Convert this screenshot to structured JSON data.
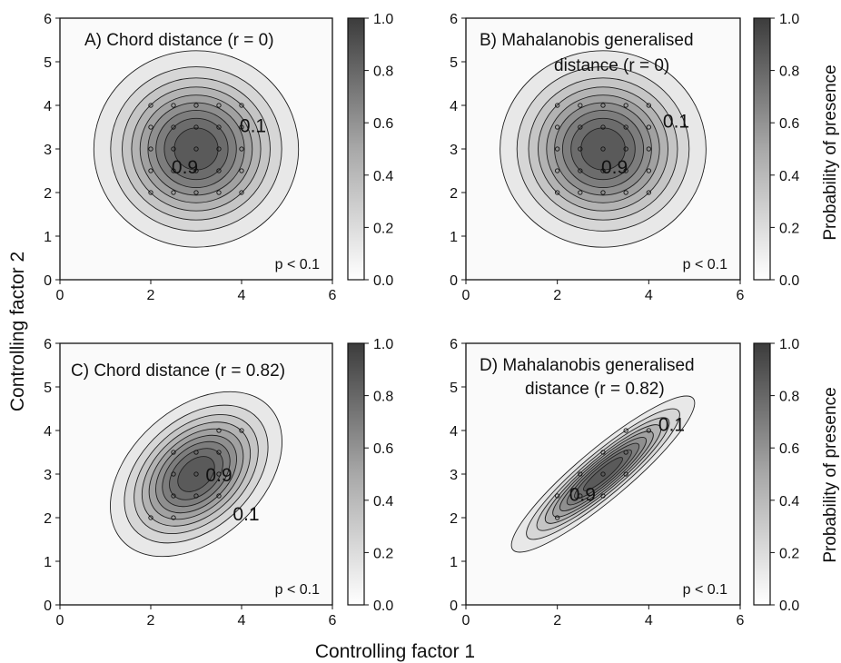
{
  "figure": {
    "xlabel": "Controlling factor 1",
    "ylabel": "Controlling factor 2",
    "colorbar_label": "Probability of presence"
  },
  "chart_data": [
    {
      "type": "contour",
      "panel": "A",
      "title_lines": [
        "A)  Chord distance (r = 0)"
      ],
      "xlim": [
        0,
        6
      ],
      "ylim": [
        0,
        6
      ],
      "xticks": [
        0,
        2,
        4,
        6
      ],
      "yticks": [
        0,
        1,
        2,
        3,
        4,
        5,
        6
      ],
      "center": [
        3,
        3
      ],
      "correlation": 0,
      "contour_levels": [
        0.1,
        0.2,
        0.3,
        0.4,
        0.5,
        0.6,
        0.7,
        0.8,
        0.9
      ],
      "contour_labels": [
        {
          "text": "0.1",
          "x": 4.25,
          "y": 3.5
        },
        {
          "text": "0.9",
          "x": 2.75,
          "y": 2.55
        }
      ],
      "annotation": "p < 0.1",
      "colorbar": {
        "min": 0.0,
        "max": 1.0,
        "ticks": [
          "0.0",
          "0.2",
          "0.4",
          "0.6",
          "0.8",
          "1.0"
        ]
      },
      "samples": [
        [
          2,
          4
        ],
        [
          2.5,
          4
        ],
        [
          3,
          4
        ],
        [
          3.5,
          4
        ],
        [
          4,
          4
        ],
        [
          2,
          3.5
        ],
        [
          2.5,
          3.5
        ],
        [
          3,
          3.5
        ],
        [
          3.5,
          3.5
        ],
        [
          4,
          3.5
        ],
        [
          2,
          3
        ],
        [
          2.5,
          3
        ],
        [
          3,
          3
        ],
        [
          3.5,
          3
        ],
        [
          4,
          3
        ],
        [
          2,
          2.5
        ],
        [
          2.5,
          2.5
        ],
        [
          3,
          2.5
        ],
        [
          3.5,
          2.5
        ],
        [
          4,
          2.5
        ],
        [
          2,
          2
        ],
        [
          2.5,
          2
        ],
        [
          3,
          2
        ],
        [
          3.5,
          2
        ],
        [
          4,
          2
        ]
      ]
    },
    {
      "type": "contour",
      "panel": "B",
      "title_lines": [
        "B)  Mahalanobis generalised",
        "distance (r = 0)"
      ],
      "xlim": [
        0,
        6
      ],
      "ylim": [
        0,
        6
      ],
      "xticks": [
        0,
        2,
        4,
        6
      ],
      "yticks": [
        0,
        1,
        2,
        3,
        4,
        5,
        6
      ],
      "center": [
        3,
        3
      ],
      "correlation": 0,
      "contour_levels": [
        0.1,
        0.2,
        0.3,
        0.4,
        0.5,
        0.6,
        0.7,
        0.8,
        0.9
      ],
      "contour_labels": [
        {
          "text": "0.1",
          "x": 4.6,
          "y": 3.6
        },
        {
          "text": "0.9",
          "x": 3.25,
          "y": 2.55
        }
      ],
      "annotation": "p < 0.1",
      "colorbar": {
        "min": 0.0,
        "max": 1.0,
        "ticks": [
          "0.0",
          "0.2",
          "0.4",
          "0.6",
          "0.8",
          "1.0"
        ]
      },
      "samples": [
        [
          2,
          4
        ],
        [
          2.5,
          4
        ],
        [
          3,
          4
        ],
        [
          3.5,
          4
        ],
        [
          4,
          4
        ],
        [
          2,
          3.5
        ],
        [
          2.5,
          3.5
        ],
        [
          3,
          3.5
        ],
        [
          3.5,
          3.5
        ],
        [
          4,
          3.5
        ],
        [
          2,
          3
        ],
        [
          2.5,
          3
        ],
        [
          3,
          3
        ],
        [
          3.5,
          3
        ],
        [
          4,
          3
        ],
        [
          2,
          2.5
        ],
        [
          2.5,
          2.5
        ],
        [
          3,
          2.5
        ],
        [
          3.5,
          2.5
        ],
        [
          4,
          2.5
        ],
        [
          2,
          2
        ],
        [
          2.5,
          2
        ],
        [
          3,
          2
        ],
        [
          3.5,
          2
        ],
        [
          4,
          2
        ]
      ]
    },
    {
      "type": "contour",
      "panel": "C",
      "title_lines": [
        "C)  Chord distance (r = 0.82)"
      ],
      "xlim": [
        0,
        6
      ],
      "ylim": [
        0,
        6
      ],
      "xticks": [
        0,
        2,
        4,
        6
      ],
      "yticks": [
        0,
        1,
        2,
        3,
        4,
        5,
        6
      ],
      "center": [
        3,
        3
      ],
      "correlation": 0.82,
      "contour_levels": [
        0.1,
        0.2,
        0.3,
        0.4,
        0.5,
        0.6,
        0.7,
        0.8,
        0.9
      ],
      "contour_labels": [
        {
          "text": "0.9",
          "x": 3.5,
          "y": 2.95
        },
        {
          "text": "0.1",
          "x": 4.1,
          "y": 2.05
        }
      ],
      "annotation": "p < 0.1",
      "colorbar": {
        "min": 0.0,
        "max": 1.0,
        "ticks": [
          "0.0",
          "0.2",
          "0.4",
          "0.6",
          "0.8",
          "1.0"
        ]
      },
      "samples": [
        [
          3.5,
          4
        ],
        [
          4,
          4
        ],
        [
          2.5,
          3.5
        ],
        [
          3,
          3.5
        ],
        [
          3.5,
          3.5
        ],
        [
          2.5,
          3
        ],
        [
          3,
          3
        ],
        [
          3.5,
          3
        ],
        [
          2.5,
          2.5
        ],
        [
          3,
          2.5
        ],
        [
          3.5,
          2.5
        ],
        [
          2,
          2
        ],
        [
          2.5,
          2
        ]
      ]
    },
    {
      "type": "contour",
      "panel": "D",
      "title_lines": [
        "D)  Mahalanobis generalised",
        "distance (r = 0.82)"
      ],
      "xlim": [
        0,
        6
      ],
      "ylim": [
        0,
        6
      ],
      "xticks": [
        0,
        2,
        4,
        6
      ],
      "yticks": [
        0,
        1,
        2,
        3,
        4,
        5,
        6
      ],
      "center": [
        3,
        3
      ],
      "correlation": 0.82,
      "contour_levels": [
        0.1,
        0.2,
        0.3,
        0.4,
        0.5,
        0.6,
        0.7,
        0.8,
        0.9
      ],
      "contour_labels": [
        {
          "text": "0.1",
          "x": 4.5,
          "y": 4.1
        },
        {
          "text": "0.9",
          "x": 2.55,
          "y": 2.5
        }
      ],
      "annotation": "p < 0.1",
      "colorbar": {
        "min": 0.0,
        "max": 1.0,
        "ticks": [
          "0.0",
          "0.2",
          "0.4",
          "0.6",
          "0.8",
          "1.0"
        ]
      },
      "samples": [
        [
          3.5,
          4
        ],
        [
          4,
          4
        ],
        [
          3,
          3.5
        ],
        [
          3.5,
          3.5
        ],
        [
          2.5,
          3
        ],
        [
          3,
          3
        ],
        [
          3.5,
          3
        ],
        [
          2,
          2.5
        ],
        [
          2.5,
          2.5
        ],
        [
          3,
          2.5
        ],
        [
          2,
          2
        ]
      ]
    }
  ]
}
